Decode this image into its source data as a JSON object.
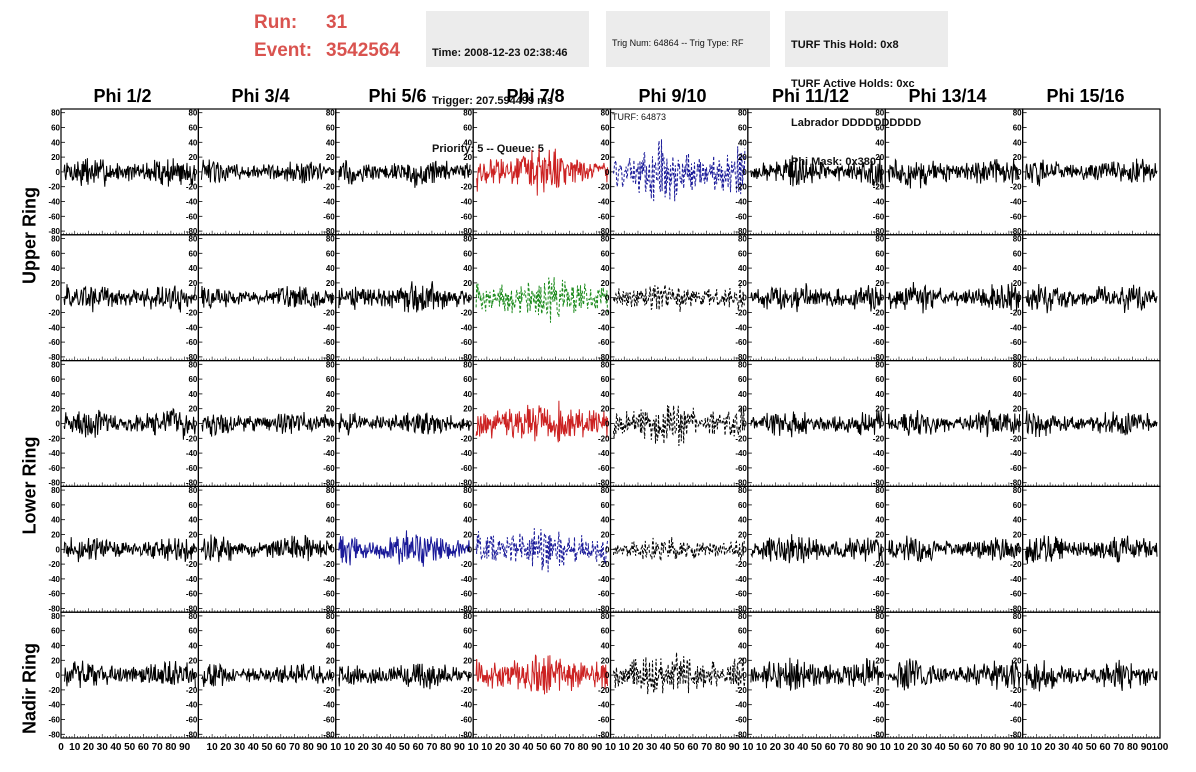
{
  "header": {
    "run_label": "Run:",
    "run_value": "31",
    "event_label": "Event:",
    "event_value": "3542564",
    "time": "Time: 2008-12-23 02:38:46",
    "trigger": "Trigger: 207.594499 ms",
    "priority": "Priority: 5 -- Queue: 5",
    "trig_num": "Trig Num: 64864 -- Trig Type: RF",
    "turf": "TURF: 64873",
    "turf_hold": "TURF This Hold: 0x8",
    "turf_active": "TURF Active Holds: 0xc",
    "labrador": "Labrador DDDDDDDDDD",
    "phi_mask": "Phi Mask: 0x380"
  },
  "chart_data": {
    "type": "line",
    "columns": [
      "Phi 1/2",
      "Phi 3/4",
      "Phi 5/6",
      "Phi 7/8",
      "Phi 9/10",
      "Phi 11/12",
      "Phi 13/14",
      "Phi 15/16"
    ],
    "ring_labels": [
      "Upper Ring",
      "Lower Ring",
      "Nadir Ring"
    ],
    "y_ticks": [
      "80",
      "60",
      "40",
      "20",
      "0",
      "-20",
      "-40",
      "-60",
      "-80"
    ],
    "x_tick_labels_first": [
      "0",
      "10",
      "20",
      "30",
      "40",
      "50",
      "60",
      "70",
      "80",
      "90"
    ],
    "x_tick_labels_middle": [
      "10",
      "20",
      "30",
      "40",
      "50",
      "60",
      "70",
      "80",
      "90",
      "10"
    ],
    "x_tick_labels_last": [
      "10",
      "20",
      "30",
      "40",
      "50",
      "60",
      "70",
      "80",
      "90",
      "100"
    ],
    "xlim": [
      0,
      100
    ],
    "ylim": [
      -85,
      85
    ],
    "colors": {
      "normal": "#000000",
      "triggered_red": "#cc2222",
      "triggered_green": "#1a8a1a",
      "triggered_blue": "#1a1a99"
    },
    "panels": [
      [
        {
          "color": "#000000",
          "amp": 14,
          "dash": false
        },
        {
          "color": "#000000",
          "amp": 10,
          "dash": false
        },
        {
          "color": "#000000",
          "amp": 13,
          "dash": false
        },
        {
          "color": "#cc2222",
          "amp": 20,
          "dash": false
        },
        {
          "color": "#1a1a99",
          "amp": 26,
          "dash": true
        },
        {
          "color": "#000000",
          "amp": 13,
          "dash": false
        },
        {
          "color": "#000000",
          "amp": 13,
          "dash": false
        },
        {
          "color": "#000000",
          "amp": 12,
          "dash": false
        }
      ],
      [
        {
          "color": "#000000",
          "amp": 13,
          "dash": false
        },
        {
          "color": "#000000",
          "amp": 10,
          "dash": false
        },
        {
          "color": "#000000",
          "amp": 14,
          "dash": false
        },
        {
          "color": "#1a8a1a",
          "amp": 20,
          "dash": true
        },
        {
          "color": "#000000",
          "amp": 13,
          "dash": true
        },
        {
          "color": "#000000",
          "amp": 13,
          "dash": false
        },
        {
          "color": "#000000",
          "amp": 13,
          "dash": false
        },
        {
          "color": "#000000",
          "amp": 13,
          "dash": false
        }
      ],
      [
        {
          "color": "#000000",
          "amp": 13,
          "dash": false
        },
        {
          "color": "#000000",
          "amp": 11,
          "dash": false
        },
        {
          "color": "#000000",
          "amp": 11,
          "dash": false
        },
        {
          "color": "#cc2222",
          "amp": 20,
          "dash": false
        },
        {
          "color": "#000000",
          "amp": 20,
          "dash": true
        },
        {
          "color": "#000000",
          "amp": 12,
          "dash": false
        },
        {
          "color": "#000000",
          "amp": 12,
          "dash": false
        },
        {
          "color": "#000000",
          "amp": 11,
          "dash": false
        }
      ],
      [
        {
          "color": "#000000",
          "amp": 11,
          "dash": false
        },
        {
          "color": "#000000",
          "amp": 12,
          "dash": false
        },
        {
          "color": "#1a1a99",
          "amp": 16,
          "dash": false
        },
        {
          "color": "#1a1a99",
          "amp": 20,
          "dash": true
        },
        {
          "color": "#000000",
          "amp": 11,
          "dash": true
        },
        {
          "color": "#000000",
          "amp": 13,
          "dash": false
        },
        {
          "color": "#000000",
          "amp": 12,
          "dash": false
        },
        {
          "color": "#000000",
          "amp": 12,
          "dash": false
        }
      ],
      [
        {
          "color": "#000000",
          "amp": 13,
          "dash": false
        },
        {
          "color": "#000000",
          "amp": 10,
          "dash": false
        },
        {
          "color": "#000000",
          "amp": 12,
          "dash": false
        },
        {
          "color": "#cc2222",
          "amp": 20,
          "dash": false
        },
        {
          "color": "#000000",
          "amp": 20,
          "dash": true
        },
        {
          "color": "#000000",
          "amp": 15,
          "dash": false
        },
        {
          "color": "#000000",
          "amp": 13,
          "dash": false
        },
        {
          "color": "#000000",
          "amp": 13,
          "dash": false
        }
      ]
    ]
  }
}
